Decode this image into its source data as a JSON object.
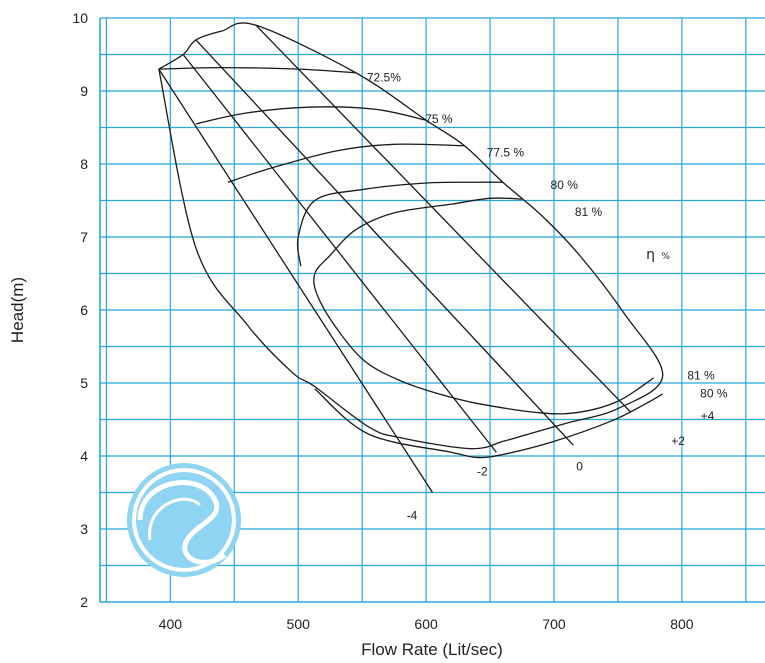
{
  "chart_data": {
    "type": "line",
    "title": "",
    "xlabel": "Flow Rate (Lit/sec)",
    "ylabel": "Head(m)",
    "xlim": [
      345,
      865
    ],
    "ylim": [
      2,
      10
    ],
    "x_ticks": [
      400,
      500,
      600,
      700,
      800
    ],
    "y_ticks": [
      2,
      3,
      4,
      5,
      6,
      7,
      8,
      9,
      10
    ],
    "grid": true,
    "colors": {
      "grid": "#29a8e0",
      "curve": "#1a1a1a",
      "text": "#222222",
      "logo": "#8fd4f2"
    },
    "efficiency_symbol": "η",
    "efficiency_unit": "%",
    "head_curves": [
      {
        "label": "-4",
        "points": [
          [
            391,
            9.3
          ],
          [
            605,
            3.5
          ]
        ]
      },
      {
        "label": "-2",
        "points": [
          [
            410,
            9.5
          ],
          [
            655,
            4.05
          ]
        ]
      },
      {
        "label": "0",
        "points": [
          [
            420,
            9.7
          ],
          [
            715,
            4.15
          ]
        ]
      },
      {
        "label": "+2",
        "points": [
          [
            467,
            9.9
          ],
          [
            760,
            4.6
          ]
        ]
      },
      {
        "label": "+4",
        "points": [
          [
            391,
            9.3
          ],
          [
            410,
            9.5
          ],
          [
            420,
            9.7
          ],
          [
            440,
            9.82
          ],
          [
            467,
            9.9
          ],
          [
            545,
            9.25
          ],
          [
            600,
            8.6
          ],
          [
            630,
            8.25
          ],
          [
            660,
            7.75
          ],
          [
            690,
            7.3
          ],
          [
            720,
            6.75
          ],
          [
            755,
            5.95
          ],
          [
            785,
            5.1
          ],
          [
            750,
            4.65
          ],
          [
            710,
            4.45
          ],
          [
            680,
            4.3
          ],
          [
            660,
            4.2
          ],
          [
            635,
            4.1
          ],
          [
            580,
            4.25
          ],
          [
            555,
            4.4
          ],
          [
            513,
            4.95
          ],
          [
            495,
            5.15
          ],
          [
            460,
            5.8
          ],
          [
            420,
            6.85
          ],
          [
            391,
            9.3
          ]
        ]
      }
    ],
    "efficiency_curves": [
      {
        "label": "72.5%",
        "points": [
          [
            391,
            9.3
          ],
          [
            440,
            9.32
          ],
          [
            500,
            9.3
          ],
          [
            545,
            9.25
          ]
        ]
      },
      {
        "label": "75 %",
        "points": [
          [
            420,
            8.55
          ],
          [
            460,
            8.7
          ],
          [
            510,
            8.78
          ],
          [
            560,
            8.75
          ],
          [
            600,
            8.6
          ]
        ]
      },
      {
        "label": "77.5 %",
        "points": [
          [
            445,
            7.75
          ],
          [
            480,
            7.95
          ],
          [
            530,
            8.18
          ],
          [
            575,
            8.27
          ],
          [
            630,
            8.25
          ]
        ]
      },
      {
        "label": "80 %",
        "points": [
          [
            502,
            6.6
          ],
          [
            500,
            7.0
          ],
          [
            513,
            7.5
          ],
          [
            550,
            7.65
          ],
          [
            600,
            7.74
          ],
          [
            640,
            7.75
          ],
          [
            660,
            7.75
          ]
        ]
      },
      {
        "label": "80 %",
        "points": [
          [
            785,
            4.85
          ],
          [
            770,
            4.7
          ],
          [
            745,
            4.48
          ],
          [
            700,
            4.2
          ],
          [
            660,
            4.02
          ],
          [
            640,
            3.98
          ],
          [
            620,
            4.05
          ],
          [
            555,
            4.3
          ],
          [
            513,
            4.92
          ]
        ]
      },
      {
        "label": "81 %",
        "points": [
          [
            675,
            7.52
          ],
          [
            650,
            7.53
          ],
          [
            620,
            7.45
          ],
          [
            575,
            7.33
          ],
          [
            545,
            7.1
          ],
          [
            525,
            6.75
          ],
          [
            513,
            6.5
          ],
          [
            515,
            6.2
          ],
          [
            530,
            5.75
          ],
          [
            552,
            5.3
          ],
          [
            580,
            5.03
          ],
          [
            610,
            4.85
          ],
          [
            640,
            4.72
          ],
          [
            690,
            4.59
          ],
          [
            720,
            4.6
          ],
          [
            750,
            4.75
          ],
          [
            778,
            5.07
          ]
        ]
      }
    ],
    "curve_labels": [
      {
        "text": "72.5%",
        "x": 567,
        "y": 9.13
      },
      {
        "text": "75 %",
        "x": 610,
        "y": 8.56
      },
      {
        "text": "77.5 %",
        "x": 662,
        "y": 8.1
      },
      {
        "text": "80 %",
        "x": 708,
        "y": 7.66
      },
      {
        "text": "81 %",
        "x": 727,
        "y": 7.29
      },
      {
        "text": "81 %",
        "x": 815,
        "y": 5.05
      },
      {
        "text": "80 %",
        "x": 825,
        "y": 4.8
      },
      {
        "text": "+4",
        "x": 820,
        "y": 4.49
      },
      {
        "text": "+2",
        "x": 797,
        "y": 4.15
      },
      {
        "text": "0",
        "x": 720,
        "y": 3.8
      },
      {
        "text": "-2",
        "x": 644,
        "y": 3.73
      },
      {
        "text": "-4",
        "x": 589,
        "y": 3.13
      }
    ],
    "eta_label": {
      "x": 772,
      "y": 6.7
    }
  }
}
